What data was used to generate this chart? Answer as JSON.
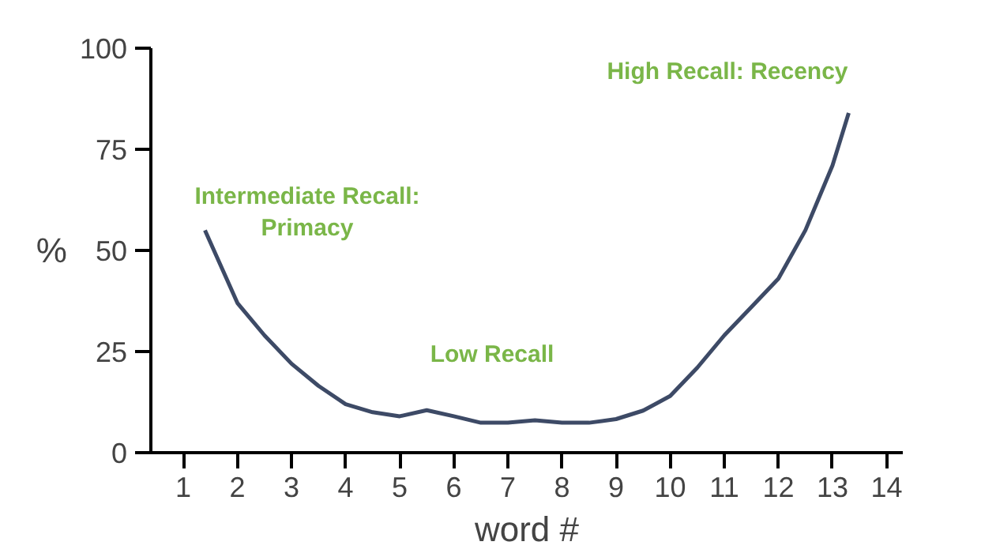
{
  "chart_data": {
    "type": "line",
    "xlabel": "word #",
    "ylabel": "%",
    "x": [
      1.4,
      2,
      2.5,
      3,
      3.5,
      4,
      4.5,
      5,
      5.5,
      6,
      6.5,
      7,
      7.5,
      8,
      8.5,
      9,
      9.5,
      10,
      10.5,
      11,
      11.5,
      12,
      12.5,
      13,
      13.3
    ],
    "series": [
      {
        "color": "#3d4a66",
        "values": [
          55,
          37,
          29,
          22,
          16.5,
          12,
          10,
          9,
          10.5,
          9,
          7.4,
          7.4,
          8,
          7.4,
          7.4,
          8.3,
          10.4,
          14,
          21,
          29,
          36,
          43,
          55,
          71,
          84
        ]
      }
    ],
    "xlim": [
      0.4,
      14.3
    ],
    "xticks": [
      1,
      2,
      3,
      4,
      5,
      6,
      7,
      8,
      9,
      10,
      11,
      12,
      13,
      14
    ],
    "ylim": [
      0,
      100
    ],
    "yticks": [
      0,
      25,
      50,
      75,
      100
    ],
    "grid": false,
    "marker": "none",
    "line_style": "solid",
    "annotations": [
      "Intermediate Recall:\nPrimacy",
      "Low Recall",
      "High Recall: Recency"
    ]
  }
}
